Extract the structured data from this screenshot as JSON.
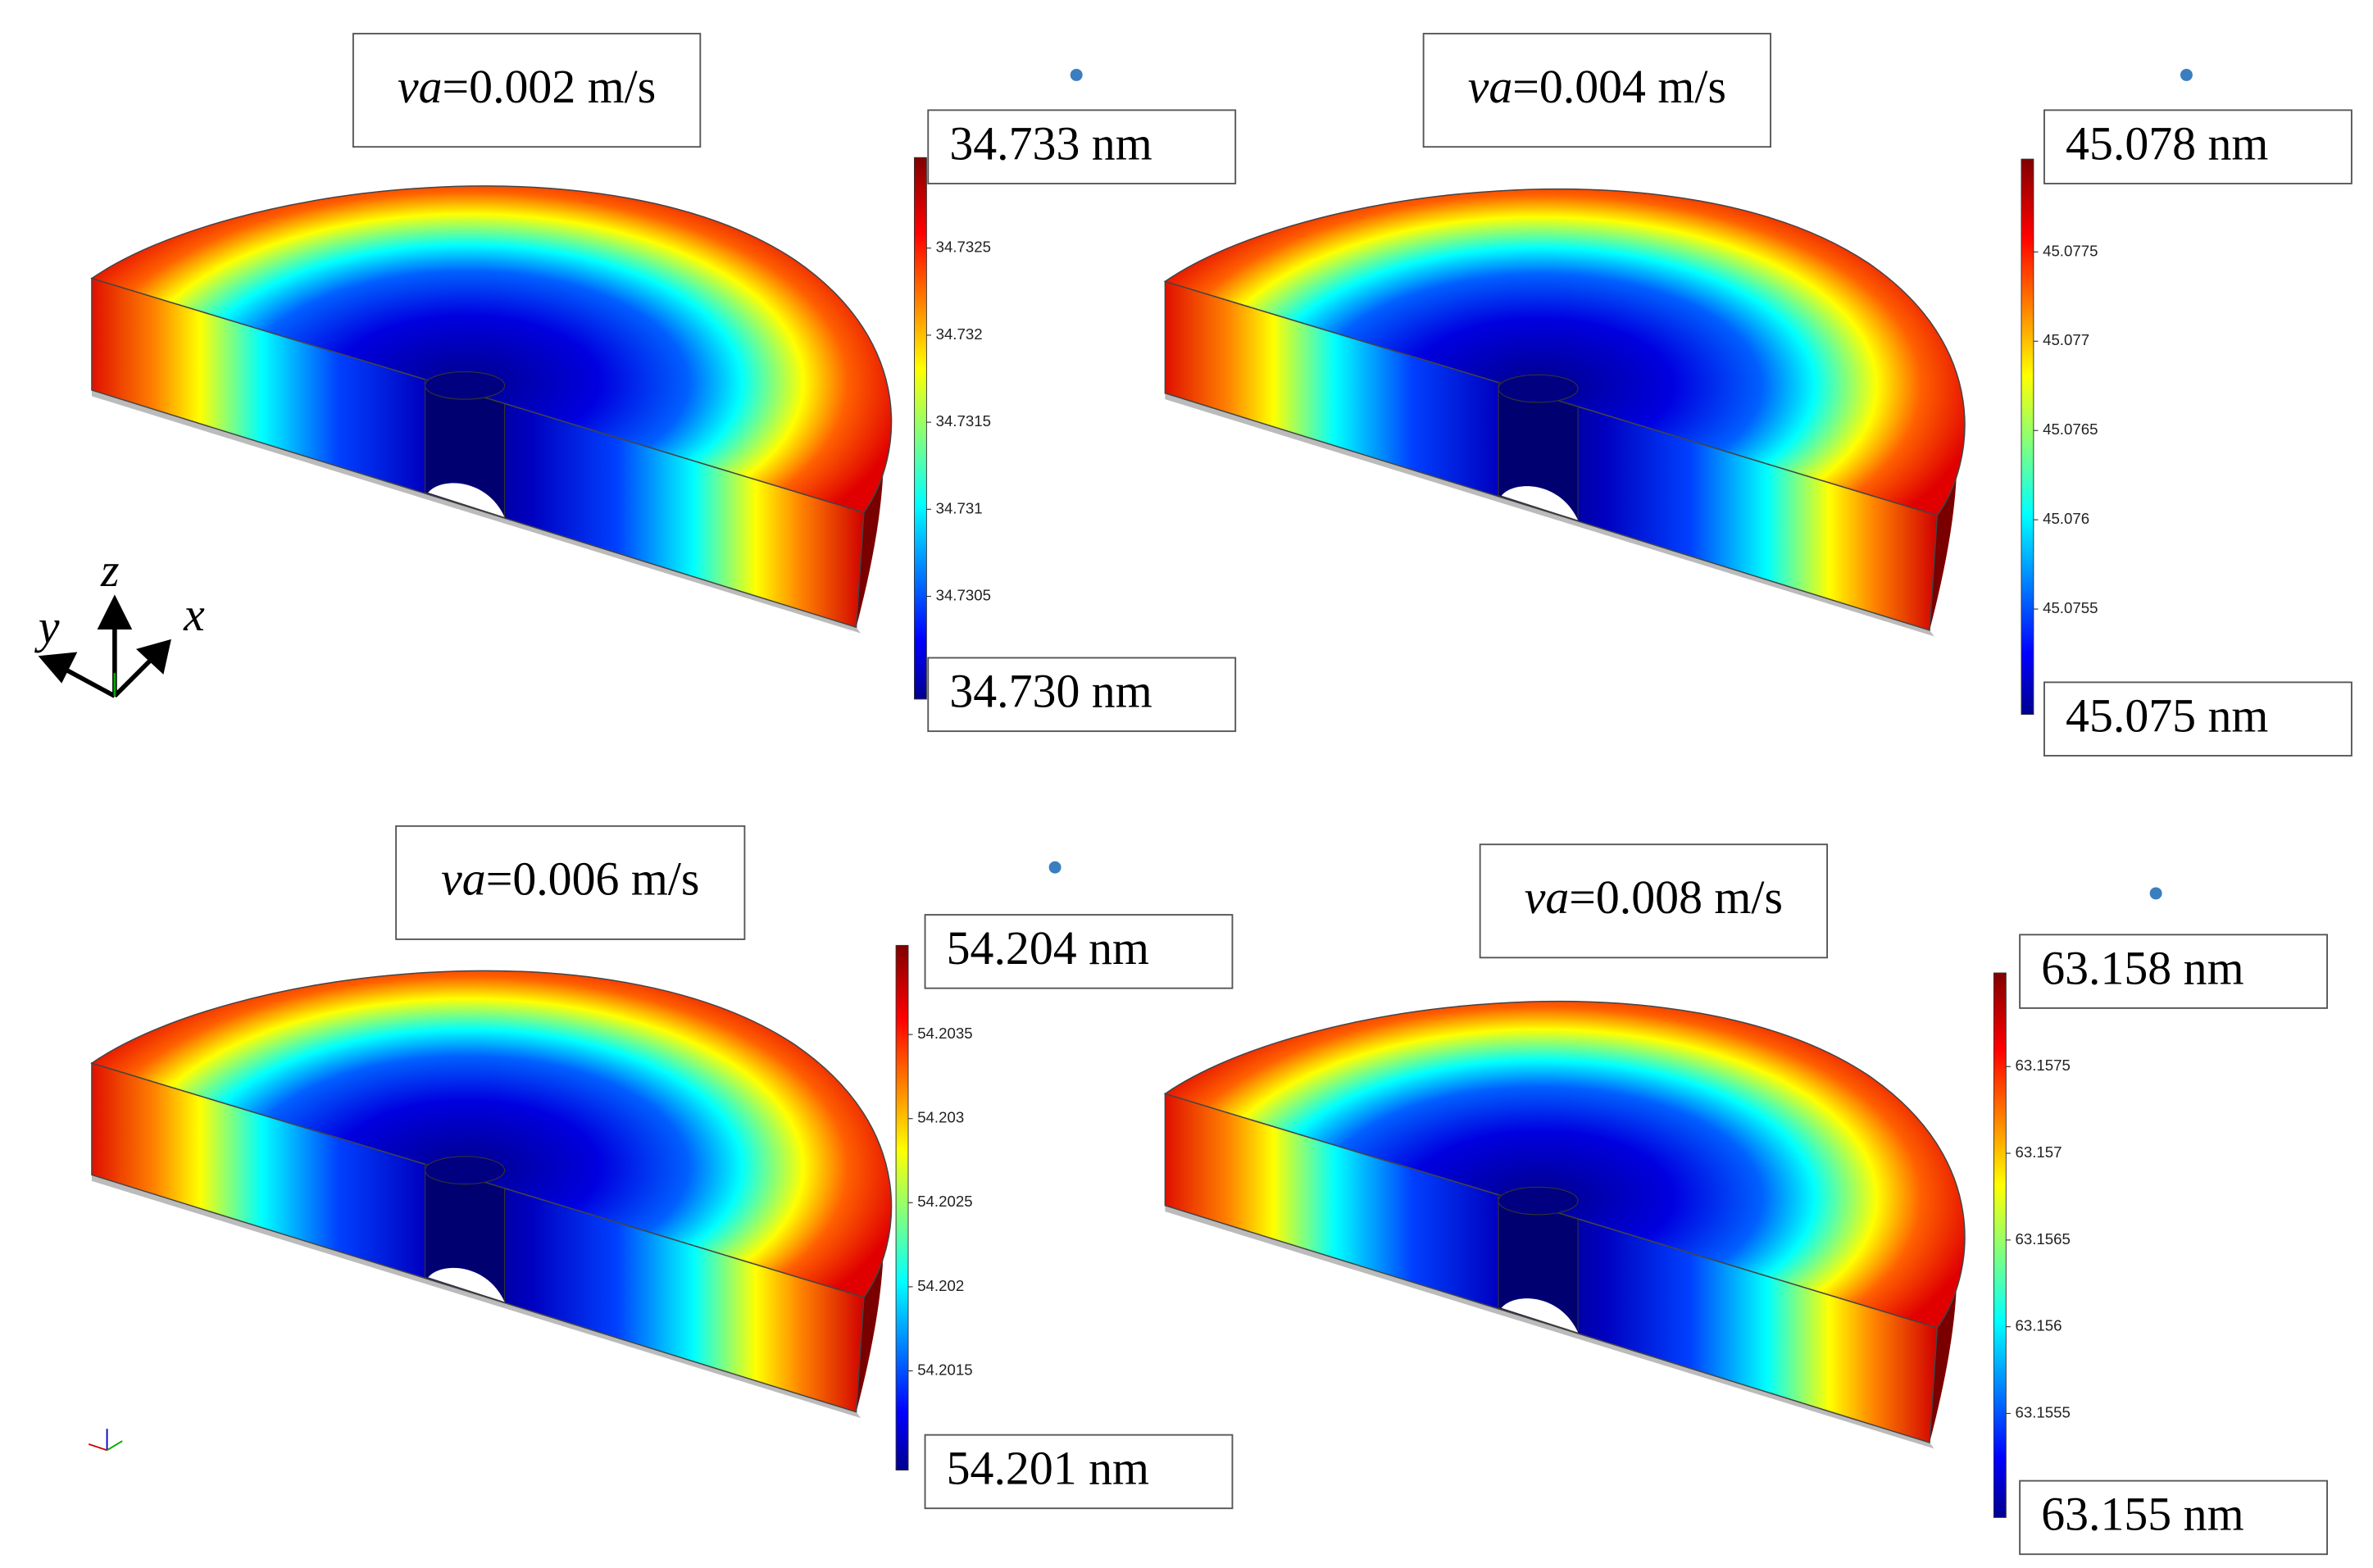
{
  "panels": [
    {
      "title_italic": "va",
      "title_rest": "=0.002 m/s",
      "max_label": "34.733 nm",
      "min_label": "34.730 nm",
      "colorbar_range": [
        34.72991,
        34.73302
      ],
      "colorbar_ticks": [
        34.7325,
        34.732,
        34.7315,
        34.731,
        34.7305
      ]
    },
    {
      "title_italic": "va",
      "title_rest": "=0.004 m/s",
      "max_label": "45.078 nm",
      "min_label": "45.075 nm",
      "colorbar_range": [
        45.07491,
        45.07802
      ],
      "colorbar_ticks": [
        45.0775,
        45.077,
        45.0765,
        45.076,
        45.0755
      ]
    },
    {
      "title_italic": "va",
      "title_rest": "=0.006 m/s",
      "max_label": "54.204 nm",
      "min_label": "54.201 nm",
      "colorbar_range": [
        54.20091,
        54.20403
      ],
      "colorbar_ticks": [
        54.2035,
        54.203,
        54.2025,
        54.202,
        54.2015
      ]
    },
    {
      "title_italic": "va",
      "title_rest": "=0.008 m/s",
      "max_label": "63.158 nm",
      "min_label": "63.155 nm",
      "colorbar_range": [
        63.1549,
        63.15804
      ],
      "colorbar_ticks": [
        63.1575,
        63.157,
        63.1565,
        63.156,
        63.1555
      ]
    }
  ],
  "axes_triad": {
    "z": "z",
    "y": "y",
    "x": "x"
  }
}
